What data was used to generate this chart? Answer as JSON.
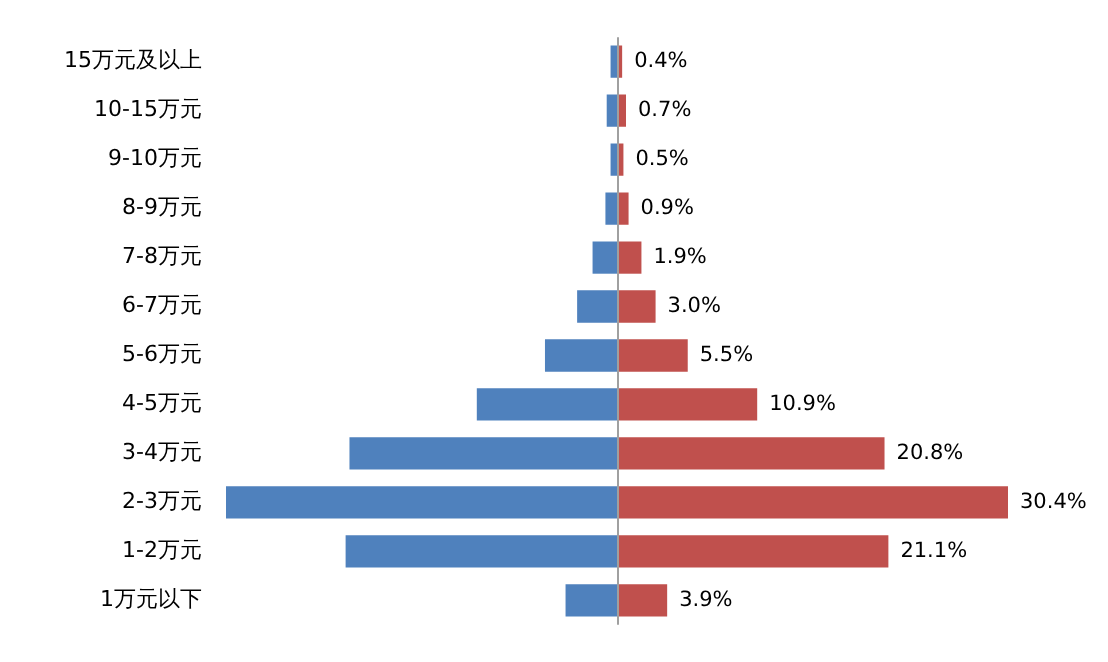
{
  "chart_data": {
    "type": "bar",
    "orientation": "horizontal",
    "stacked": true,
    "categories": [
      "15万元及以上",
      "10-15万元",
      "9-10万元",
      "8-9万元",
      "7-8万元",
      "6-7万元",
      "5-6万元",
      "4-5万元",
      "3-4万元",
      "2-3万元",
      "1-2万元",
      "1万元以下"
    ],
    "series": [
      {
        "color": "#4f81bd",
        "values": [
          -0.5,
          -0.8,
          -0.5,
          -0.9,
          -1.9,
          -3.1,
          -5.6,
          -10.9,
          -20.8,
          -30.4,
          -21.1,
          -4.0
        ]
      },
      {
        "color": "#c0504d",
        "values": [
          0.4,
          0.7,
          0.5,
          0.9,
          1.9,
          3.0,
          5.5,
          10.9,
          20.8,
          30.4,
          21.1,
          3.9
        ],
        "value_labels": [
          "0.4%",
          "0.7%",
          "0.5%",
          "0.9%",
          "1.9%",
          "3.0%",
          "5.5%",
          "10.9%",
          "20.8%",
          "30.4%",
          "21.1%",
          "3.9%"
        ]
      }
    ],
    "tick_labels": "y",
    "grid": false,
    "legend": false
  }
}
